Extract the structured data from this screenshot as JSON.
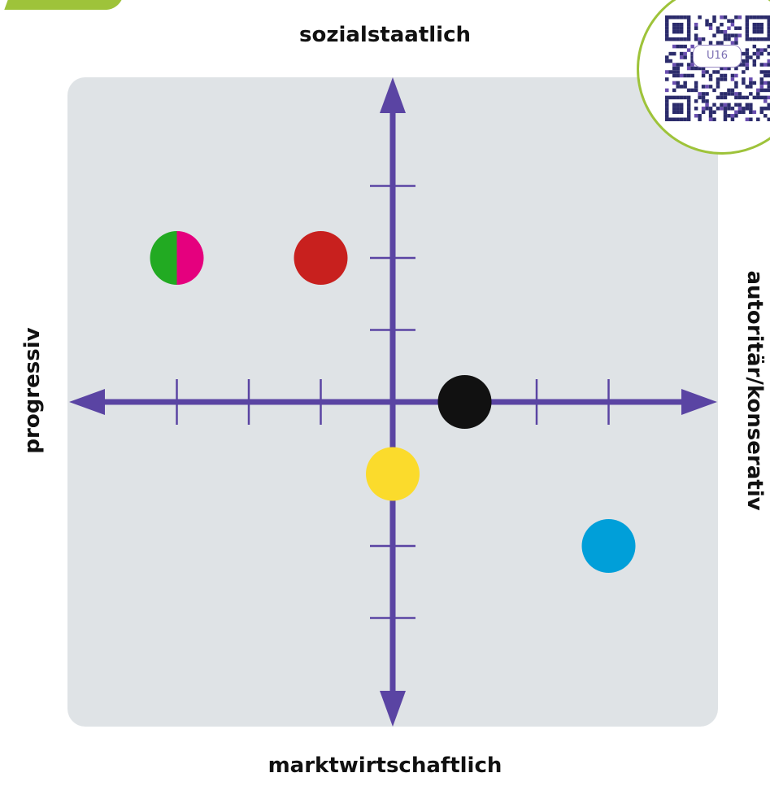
{
  "chart_data": {
    "type": "scatter",
    "title": "",
    "xlabel_left": "progressiv",
    "xlabel_right": "autoritär/konserativ",
    "ylabel_top": "sozialstaatlich",
    "ylabel_bottom": "marktwirtschaftlich",
    "xlim": [
      -4.5,
      4.5
    ],
    "ylim": [
      -4.5,
      4.5
    ],
    "xticks": [
      -3,
      -2,
      -1,
      1,
      2,
      3
    ],
    "yticks": [
      -3,
      -2,
      -1,
      1,
      2,
      3
    ],
    "grid": false,
    "points": [
      {
        "x": -3,
        "y": 2,
        "colors": [
          "#22aa22",
          "#e5007e"
        ],
        "split": true
      },
      {
        "x": -1,
        "y": 2,
        "colors": [
          "#c8201e"
        ]
      },
      {
        "x": 1,
        "y": 0,
        "colors": [
          "#111111"
        ]
      },
      {
        "x": 0,
        "y": -1,
        "colors": [
          "#fbdb2c"
        ]
      },
      {
        "x": 3,
        "y": -2,
        "colors": [
          "#009fd9"
        ]
      }
    ],
    "colors": {
      "axis": "#5a44a3",
      "plot_background": "#dfe3e6"
    }
  },
  "badge": {
    "text": "U16"
  },
  "colors": {
    "accent": "#9ec33a"
  }
}
